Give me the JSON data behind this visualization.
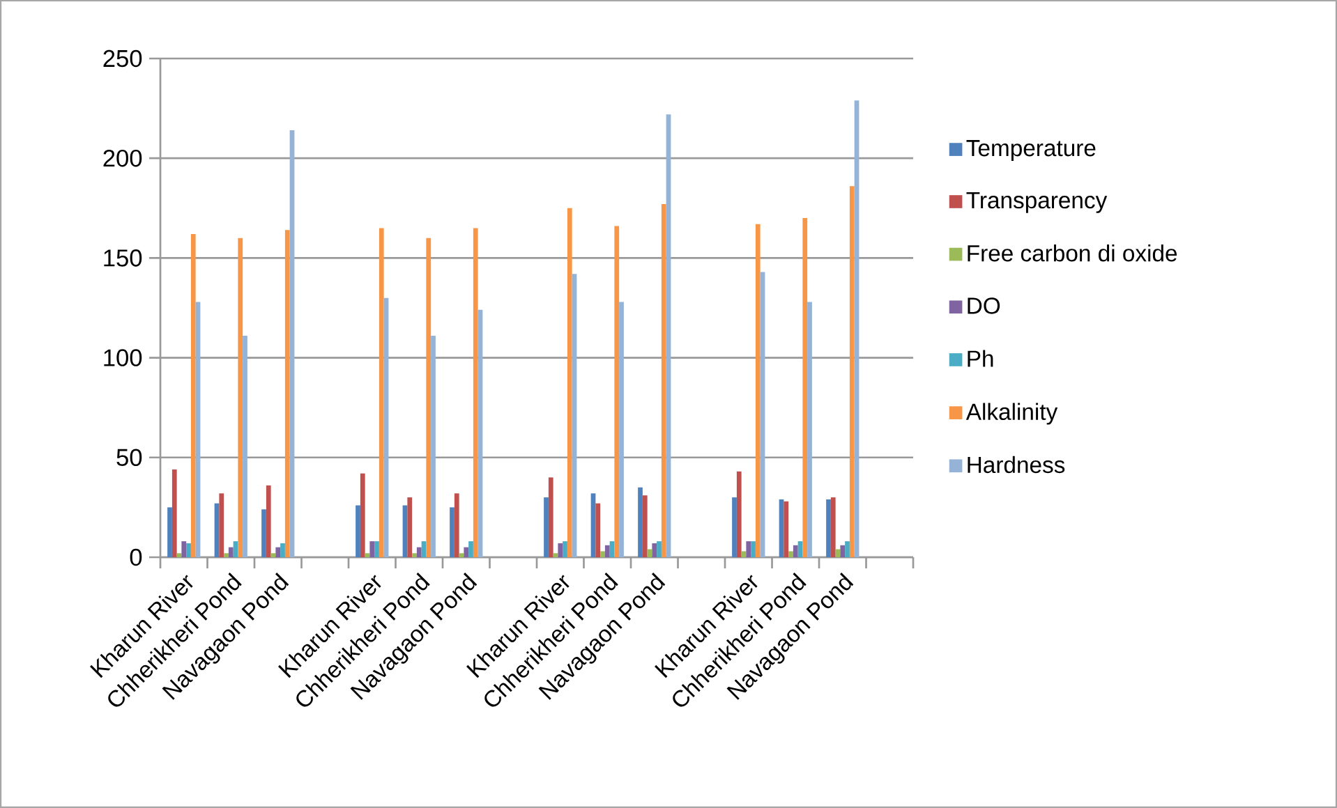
{
  "chart_data": {
    "type": "bar",
    "categories": [
      "Kharun River",
      "Chherikheri Pond",
      "Navagaon Pond",
      null,
      "Kharun River",
      "Chherikheri Pond",
      "Navagaon Pond",
      null,
      "Kharun River",
      "Chherikheri Pond",
      "Navagaon Pond",
      null,
      "Kharun River",
      "Chherikheri Pond",
      "Navagaon Pond",
      null
    ],
    "series": [
      {
        "name": "Temperature",
        "color": "#4f81bd",
        "values": [
          25,
          27,
          24,
          null,
          26,
          26,
          25,
          null,
          30,
          32,
          35,
          null,
          30,
          29,
          29,
          null
        ]
      },
      {
        "name": "Transparency",
        "color": "#c0504d",
        "values": [
          44,
          32,
          36,
          null,
          42,
          30,
          32,
          null,
          40,
          27,
          31,
          null,
          43,
          28,
          30,
          null
        ]
      },
      {
        "name": "Free carbon di oxide",
        "color": "#9bbb59",
        "values": [
          2,
          2,
          2,
          null,
          2,
          2,
          2,
          null,
          2,
          3,
          4,
          null,
          3,
          3,
          4,
          null
        ]
      },
      {
        "name": "DO",
        "color": "#8064a2",
        "values": [
          8,
          5,
          5,
          null,
          8,
          5,
          5,
          null,
          7,
          6,
          7,
          null,
          8,
          6,
          6,
          null
        ]
      },
      {
        "name": "Ph",
        "color": "#4bacc6",
        "values": [
          7,
          8,
          7,
          null,
          8,
          8,
          8,
          null,
          8,
          8,
          8,
          null,
          8,
          8,
          8,
          null
        ]
      },
      {
        "name": "Alkalinity",
        "color": "#f79646",
        "values": [
          162,
          160,
          164,
          null,
          165,
          160,
          165,
          null,
          175,
          166,
          177,
          null,
          167,
          170,
          186,
          null
        ]
      },
      {
        "name": "Hardness",
        "color": "#95b3d7",
        "values": [
          128,
          111,
          214,
          null,
          130,
          111,
          124,
          null,
          142,
          128,
          222,
          null,
          143,
          128,
          229,
          null
        ]
      }
    ],
    "ylim": [
      0,
      250
    ],
    "yticks": [
      0,
      50,
      100,
      150,
      200,
      250
    ],
    "grid": "y",
    "legend": "right"
  }
}
